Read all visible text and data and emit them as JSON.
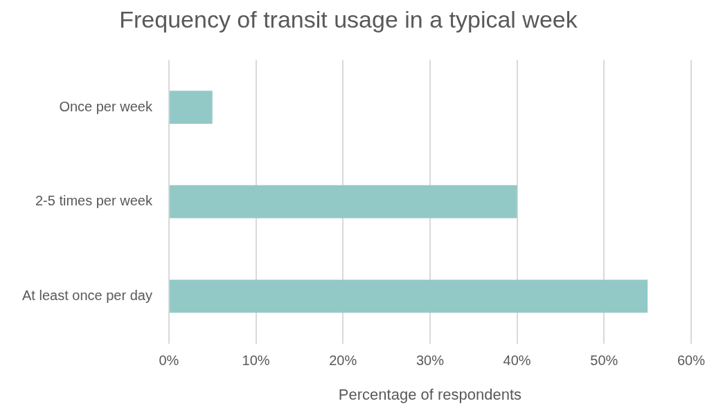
{
  "chart_data": {
    "type": "bar",
    "orientation": "horizontal",
    "title": "Frequency of transit usage in a typical week",
    "xlabel": "Percentage of respondents",
    "categories": [
      "Once per week",
      "2-5 times per week",
      "At least once per day"
    ],
    "values": [
      5,
      40,
      55
    ],
    "color": "#92c9c7",
    "xlim": [
      0,
      60
    ],
    "xticks": [
      {
        "value": 0,
        "label": "0%"
      },
      {
        "value": 10,
        "label": "10%"
      },
      {
        "value": 20,
        "label": "20%"
      },
      {
        "value": 30,
        "label": "30%"
      },
      {
        "value": 40,
        "label": "40%"
      },
      {
        "value": 50,
        "label": "50%"
      },
      {
        "value": 60,
        "label": "60%"
      }
    ],
    "grid": "x",
    "legend": false
  }
}
